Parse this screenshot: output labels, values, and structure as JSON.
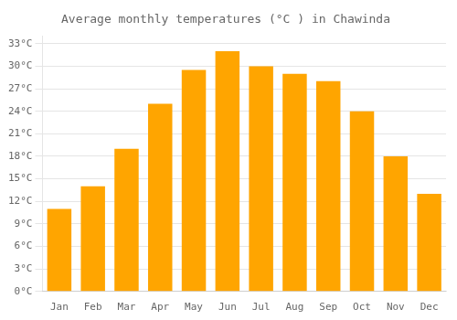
{
  "chart_data": {
    "type": "bar",
    "title": "Average monthly temperatures (°C ) in Chawinda",
    "categories": [
      "Jan",
      "Feb",
      "Mar",
      "Apr",
      "May",
      "Jun",
      "Jul",
      "Aug",
      "Sep",
      "Oct",
      "Nov",
      "Dec"
    ],
    "values": [
      11,
      14,
      19,
      25,
      29.5,
      32,
      30,
      29,
      28,
      24,
      18,
      13
    ],
    "color": "#FFA500",
    "ylim": [
      0,
      34
    ],
    "yticks": [
      {
        "value": 0,
        "label": "0°C"
      },
      {
        "value": 3,
        "label": "3°C"
      },
      {
        "value": 6,
        "label": "6°C"
      },
      {
        "value": 9,
        "label": "9°C"
      },
      {
        "value": 12,
        "label": "12°C"
      },
      {
        "value": 15,
        "label": "15°C"
      },
      {
        "value": 18,
        "label": "18°C"
      },
      {
        "value": 21,
        "label": "21°C"
      },
      {
        "value": 24,
        "label": "24°C"
      },
      {
        "value": 27,
        "label": "27°C"
      },
      {
        "value": 30,
        "label": "30°C"
      },
      {
        "value": 33,
        "label": "33°C"
      }
    ],
    "grid": true
  }
}
